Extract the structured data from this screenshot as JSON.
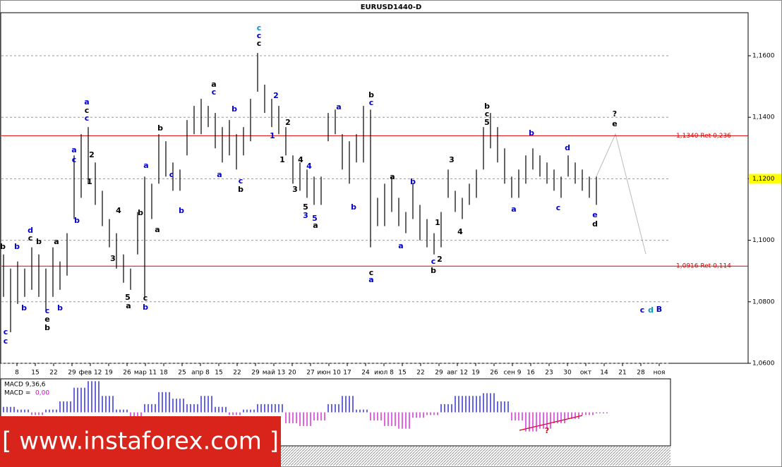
{
  "chart_data": {
    "type": "ohlc",
    "title": "EURUSD1440-D",
    "color": "#000000",
    "grid": true,
    "x_labels": [
      "8",
      "15",
      "22",
      "29",
      "фев 12",
      "19",
      "26",
      "мар 11",
      "18",
      "25",
      "апр 8",
      "15",
      "22",
      "29",
      "май 13",
      "20",
      "27",
      "июн 10",
      "17",
      "24",
      "июл 8",
      "15",
      "22",
      "29",
      "авг 12",
      "19",
      "26",
      "сен 9",
      "16",
      "23",
      "30",
      "окт",
      "14",
      "21",
      "28",
      "ноя"
    ],
    "high": [
      1.0954,
      1.0908,
      1.0931,
      1.0908,
      1.0977,
      1.0954,
      1.0908,
      1.0977,
      1.0931,
      1.1023,
      1.1276,
      1.1345,
      1.1368,
      1.1253,
      1.1161,
      1.1069,
      1.1023,
      1.0954,
      1.0908,
      1.1092,
      1.1207,
      1.1184,
      1.1345,
      1.1322,
      1.1253,
      1.123,
      1.1391,
      1.1437,
      1.146,
      1.1437,
      1.1414,
      1.1368,
      1.1391,
      1.1345,
      1.1368,
      1.146,
      1.1609,
      1.1506,
      1.146,
      1.1437,
      1.1368,
      1.1276,
      1.1253,
      1.123,
      1.1207,
      1.1207,
      1.1414,
      1.1425,
      1.1345,
      1.1322,
      1.1345,
      1.1437,
      1.1425,
      1.1138,
      1.1184,
      1.1207,
      1.1138,
      1.1092,
      1.1184,
      1.1115,
      1.1069,
      1.1023,
      1.1092,
      1.123,
      1.1161,
      1.1138,
      1.1184,
      1.123,
      1.1368,
      1.1414,
      1.1368,
      1.1299,
      1.1207,
      1.123,
      1.1276,
      1.1299,
      1.1276,
      1.1253,
      1.123,
      1.1207,
      1.1276,
      1.1253,
      1.123,
      1.1207,
      1.1207
    ],
    "low": [
      1.0816,
      1.0701,
      1.0793,
      1.0816,
      1.0839,
      1.0816,
      1.077,
      1.0816,
      1.0839,
      1.0885,
      1.1069,
      1.1138,
      1.1184,
      1.1115,
      1.1046,
      1.0977,
      1.0908,
      1.0862,
      1.0839,
      1.0954,
      1.0816,
      1.1069,
      1.1184,
      1.1207,
      1.1161,
      1.1161,
      1.1276,
      1.1345,
      1.1345,
      1.1368,
      1.1299,
      1.1253,
      1.1276,
      1.123,
      1.1276,
      1.1322,
      1.1483,
      1.1414,
      1.1368,
      1.1345,
      1.1276,
      1.1184,
      1.1161,
      1.1138,
      1.1115,
      1.1115,
      1.1322,
      1.1345,
      1.123,
      1.1184,
      1.1253,
      1.1253,
      1.0977,
      1.1046,
      1.1046,
      1.1092,
      1.1046,
      1.1023,
      1.1069,
      1.1,
      1.0977,
      1.0954,
      1.0977,
      1.1138,
      1.1092,
      1.1069,
      1.1115,
      1.1138,
      1.123,
      1.1299,
      1.1253,
      1.1184,
      1.1138,
      1.1138,
      1.1184,
      1.123,
      1.1207,
      1.1184,
      1.1161,
      1.1138,
      1.1207,
      1.1184,
      1.1161,
      1.1138,
      1.1115
    ],
    "ylim": [
      1.06,
      1.174
    ],
    "yticks": [
      {
        "value": 1.06,
        "label": "1,0600"
      },
      {
        "value": 1.08,
        "label": "1,0800"
      },
      {
        "value": 1.1,
        "label": "1,1000"
      },
      {
        "value": 1.12,
        "label": "1,1200"
      },
      {
        "value": 1.14,
        "label": "1,1400"
      },
      {
        "value": 1.16,
        "label": "1,1600"
      }
    ],
    "levels": [
      {
        "value": 1.134,
        "label": "1,1340 Ret 0,236",
        "color": "#dd0000"
      },
      {
        "value": 1.0916,
        "label": "1,0916 Ret 0,114",
        "color": "#dd0000"
      }
    ],
    "current_price": {
      "value": 1.12,
      "label": "1,1200"
    },
    "annotations": [
      {
        "text": "c",
        "color": "#0000cc"
      },
      {
        "text": "c",
        "color": "#0000cc"
      },
      {
        "text": "b",
        "color": "#000000"
      },
      {
        "text": "b",
        "color": "#0000cc"
      },
      {
        "text": "d",
        "color": "#0000cc"
      },
      {
        "text": "c",
        "color": "#000000"
      },
      {
        "text": "b",
        "color": "#0000cc"
      },
      {
        "text": "b",
        "color": "#000000"
      },
      {
        "text": "c",
        "color": "#0000cc"
      },
      {
        "text": "e",
        "color": "#000000"
      },
      {
        "text": "b",
        "color": "#000000"
      },
      {
        "text": "a",
        "color": "#000000"
      },
      {
        "text": "b",
        "color": "#0000cc"
      },
      {
        "text": "a",
        "color": "#0000cc"
      },
      {
        "text": "c",
        "color": "#0000cc"
      },
      {
        "text": "b",
        "color": "#0000cc"
      },
      {
        "text": "a",
        "color": "#0000cc"
      },
      {
        "text": "c",
        "color": "#000000"
      },
      {
        "text": "c",
        "color": "#0000cc"
      },
      {
        "text": "2",
        "color": "#000000"
      },
      {
        "text": "1",
        "color": "#000000"
      },
      {
        "text": "4",
        "color": "#000000"
      },
      {
        "text": "3",
        "color": "#000000"
      },
      {
        "text": "5",
        "color": "#000000"
      },
      {
        "text": "a",
        "color": "#000000"
      },
      {
        "text": "b",
        "color": "#000000"
      },
      {
        "text": "c",
        "color": "#000000"
      },
      {
        "text": "b",
        "color": "#0000cc"
      },
      {
        "text": "a",
        "color": "#0000cc"
      },
      {
        "text": "a",
        "color": "#000000"
      },
      {
        "text": "b",
        "color": "#000000"
      },
      {
        "text": "c",
        "color": "#0000cc"
      },
      {
        "text": "b",
        "color": "#0000cc"
      },
      {
        "text": "a",
        "color": "#000000"
      },
      {
        "text": "c",
        "color": "#0000cc"
      },
      {
        "text": "b",
        "color": "#0000cc"
      },
      {
        "text": "a",
        "color": "#0000cc"
      },
      {
        "text": "c",
        "color": "#0000cc"
      },
      {
        "text": "b",
        "color": "#000000"
      },
      {
        "text": "c",
        "color": "#0099cc"
      },
      {
        "text": "c",
        "color": "#0000cc"
      },
      {
        "text": "c",
        "color": "#000000"
      },
      {
        "text": "2",
        "color": "#0000cc"
      },
      {
        "text": "1",
        "color": "#0000cc"
      },
      {
        "text": "2",
        "color": "#000000"
      },
      {
        "text": "1",
        "color": "#000000"
      },
      {
        "text": "4",
        "color": "#000000"
      },
      {
        "text": "4",
        "color": "#0000cc"
      },
      {
        "text": "3",
        "color": "#000000"
      },
      {
        "text": "5",
        "color": "#000000"
      },
      {
        "text": "3",
        "color": "#0000cc"
      },
      {
        "text": "5",
        "color": "#0000cc"
      },
      {
        "text": "a",
        "color": "#000000"
      },
      {
        "text": "a",
        "color": "#0000cc"
      },
      {
        "text": "b",
        "color": "#0000cc"
      },
      {
        "text": "b",
        "color": "#000000"
      },
      {
        "text": "c",
        "color": "#0000cc"
      },
      {
        "text": "c",
        "color": "#000000"
      },
      {
        "text": "a",
        "color": "#0000cc"
      },
      {
        "text": "a",
        "color": "#000000"
      },
      {
        "text": "b",
        "color": "#0000cc"
      },
      {
        "text": "a",
        "color": "#0000cc"
      },
      {
        "text": "1",
        "color": "#000000"
      },
      {
        "text": "2",
        "color": "#000000"
      },
      {
        "text": "c",
        "color": "#0000cc"
      },
      {
        "text": "b",
        "color": "#000000"
      },
      {
        "text": "3",
        "color": "#000000"
      },
      {
        "text": "4",
        "color": "#000000"
      },
      {
        "text": "b",
        "color": "#000000"
      },
      {
        "text": "c",
        "color": "#000000"
      },
      {
        "text": "5",
        "color": "#000000"
      },
      {
        "text": "a",
        "color": "#0000cc"
      },
      {
        "text": "b",
        "color": "#0000cc"
      },
      {
        "text": "d",
        "color": "#0000cc"
      },
      {
        "text": "c",
        "color": "#0000cc"
      },
      {
        "text": "e",
        "color": "#0000cc"
      },
      {
        "text": "d",
        "color": "#000000"
      },
      {
        "text": "?",
        "color": "#000000"
      },
      {
        "text": "e",
        "color": "#000000"
      },
      {
        "text": "c",
        "color": "#0000cc"
      },
      {
        "text": "d",
        "color": "#0099cc"
      },
      {
        "text": "B",
        "color": "#0000cc"
      },
      {
        "text": "?",
        "color": "#dd0000"
      }
    ],
    "indicator": {
      "title": "MACD 9,36,6",
      "value_name": "MACD =",
      "value_label": "0,00",
      "values": [
        0.001,
        0.0005,
        -0.0005,
        0.0005,
        0.002,
        0.0045,
        0.0057,
        0.003,
        0.0005,
        -0.001,
        0.0015,
        0.0037,
        0.0025,
        0.0015,
        0.003,
        0.001,
        -0.0005,
        0.0005,
        0.0015,
        0.0015,
        -0.002,
        -0.0025,
        -0.0015,
        0.0015,
        0.003,
        0.0005,
        -0.0015,
        -0.0025,
        -0.003,
        -0.001,
        -0.0005,
        0.0015,
        0.003,
        0.003,
        0.0035,
        0.002,
        -0.0015,
        -0.0035,
        -0.003,
        -0.002,
        -0.0012,
        -0.0005,
        -0.0002
      ],
      "ylim": [
        -0.006,
        0.006
      ],
      "positive_color": "#0000cc",
      "negative_color": "#cc00cc"
    },
    "watermark": "[ www.instaforex.com ]"
  }
}
